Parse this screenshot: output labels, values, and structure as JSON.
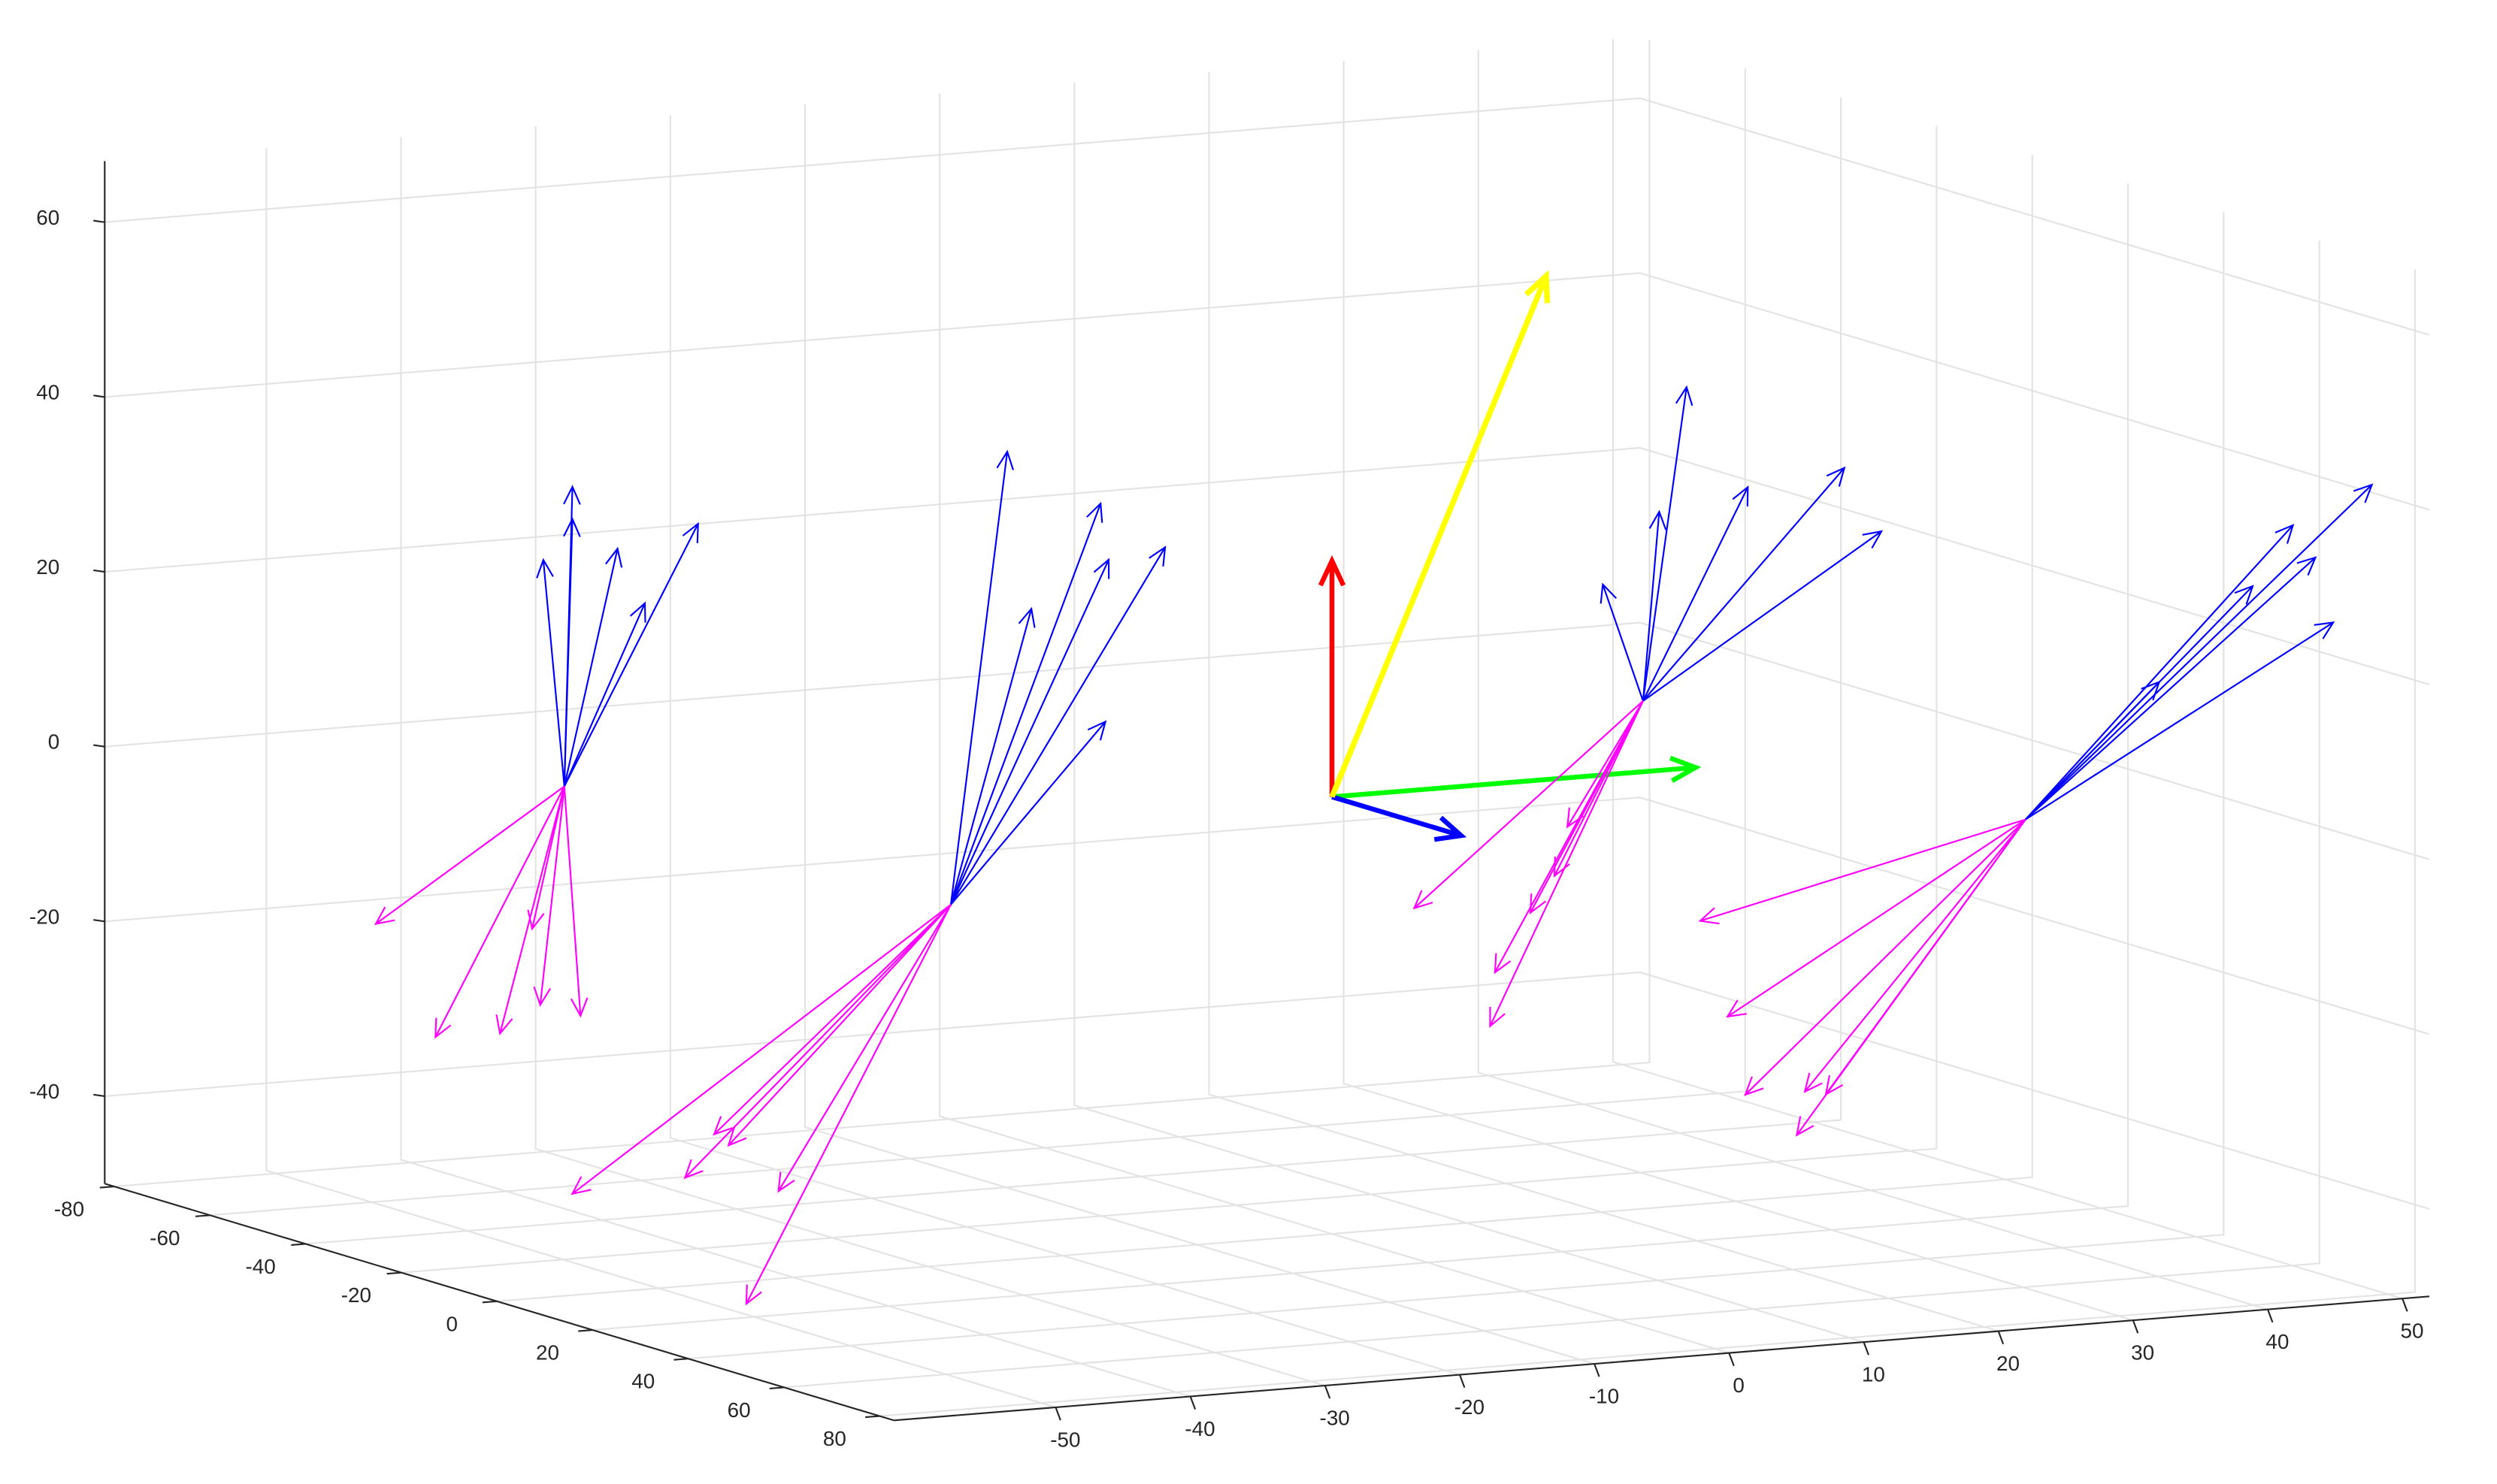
{
  "chart_data": {
    "type": "quiver3",
    "xlim": [
      -82,
      83
    ],
    "ylim": [
      -62,
      52
    ],
    "zlim": [
      -50,
      67
    ],
    "xticks": [
      -80,
      -60,
      -40,
      -20,
      0,
      20,
      40,
      60,
      80
    ],
    "yticks": [
      -50,
      -40,
      -30,
      -20,
      -10,
      0,
      10,
      20,
      30,
      40,
      50
    ],
    "zticks": [
      -40,
      -20,
      0,
      20,
      40,
      60
    ],
    "grid": true,
    "series": [
      {
        "color": "#ff0000",
        "line_width": 3,
        "origin": [
          0,
          0,
          0
        ],
        "vectors": [
          [
            0,
            0,
            27
          ]
        ]
      },
      {
        "color": "#00ff00",
        "line_width": 3,
        "origin": [
          0,
          0,
          0
        ],
        "vectors": [
          [
            0,
            27,
            0
          ]
        ]
      },
      {
        "color": "#0000ff",
        "line_width": 3,
        "origin": [
          0,
          0,
          0
        ],
        "vectors": [
          [
            27,
            0,
            0
          ]
        ]
      },
      {
        "color": "#ffff00",
        "line_width": 3.5,
        "origin": [
          0,
          0,
          0
        ],
        "vectors": [
          [
            0,
            15.9,
            57.6
          ]
        ]
      },
      {
        "color": "#0000ff",
        "line_width": 1,
        "origin": [
          0,
          -57.0,
          8.3
        ],
        "vectors": [
          [
            0,
            0.6,
            34.2
          ],
          [
            0,
            0.6,
            30.5
          ],
          [
            0,
            -1.56,
            26.1
          ],
          [
            0,
            3.95,
            26.7
          ],
          [
            0,
            5.98,
            20.2
          ],
          [
            0,
            9.93,
            28.8
          ]
        ]
      },
      {
        "color": "#ff00ff",
        "line_width": 1,
        "origin": [
          0,
          -57.0,
          8.3
        ],
        "vectors": [
          [
            0,
            -14.0,
            -14.0
          ],
          [
            0,
            -9.57,
            -27.5
          ],
          [
            0,
            -4.78,
            -27.7
          ],
          [
            0,
            -1.79,
            -24.8
          ],
          [
            0,
            1.2,
            -26.4
          ],
          [
            0,
            -2.39,
            -16.0
          ]
        ]
      },
      {
        "color": "#0000ff",
        "line_width": 1,
        "origin": [
          0,
          -28.3,
          -8.8
        ],
        "vectors": [
          [
            0,
            4.19,
            51.3
          ],
          [
            0,
            11.12,
            44.5
          ],
          [
            0,
            5.98,
            33.1
          ],
          [
            0,
            11.72,
            38.0
          ],
          [
            0,
            15.91,
            38.9
          ],
          [
            0,
            11.48,
            19.5
          ]
        ]
      },
      {
        "color": "#ff00ff",
        "line_width": 1,
        "origin": [
          0,
          -28.3,
          -8.8
        ],
        "vectors": [
          [
            0,
            -28.11,
            -29.6
          ],
          [
            0,
            -17.58,
            -24.1
          ],
          [
            0,
            -19.74,
            -28.8
          ],
          [
            0,
            -16.51,
            -25.5
          ],
          [
            0,
            -12.8,
            -31.2
          ],
          [
            0,
            -15.19,
            -43.8
          ]
        ]
      },
      {
        "color": "#0000ff",
        "line_width": 1,
        "origin": [
          0,
          23.1,
          8.1
        ],
        "vectors": [
          [
            0,
            3.23,
            35.5
          ],
          [
            0,
            1.2,
            21.5
          ],
          [
            0,
            -2.99,
            13.7
          ],
          [
            0,
            7.78,
            23.5
          ],
          [
            0,
            14.95,
            24.8
          ],
          [
            0,
            17.7,
            17.2
          ]
        ]
      },
      {
        "color": "#ff00ff",
        "line_width": 1,
        "origin": [
          0,
          23.1,
          8.1
        ],
        "vectors": [
          [
            0,
            -16.99,
            -21.6
          ],
          [
            0,
            -11.0,
            -29.7
          ],
          [
            0,
            -11.36,
            -35.8
          ],
          [
            0,
            -8.37,
            -23.2
          ],
          [
            0,
            -6.58,
            -19.2
          ],
          [
            0,
            -5.62,
            -13.7
          ]
        ]
      },
      {
        "color": "#0000ff",
        "line_width": 1,
        "origin": [
          0,
          51.5,
          -9.0
        ],
        "vectors": [
          [
            0,
            25.72,
            35.1
          ],
          [
            0,
            19.86,
            31.2
          ],
          [
            0,
            21.53,
            27.3
          ],
          [
            0,
            16.87,
            24.6
          ],
          [
            0,
            22.85,
            19.7
          ],
          [
            0,
            9.93,
            14.5
          ]
        ]
      },
      {
        "color": "#ff00ff",
        "line_width": 1,
        "origin": [
          0,
          51.5,
          -9.0
        ],
        "vectors": [
          [
            0,
            -24.16,
            -8.6
          ],
          [
            0,
            -22.13,
            -19.8
          ],
          [
            0,
            -20.81,
            -28.9
          ],
          [
            0,
            -16.39,
            -29.1
          ],
          [
            0,
            -14.83,
            -29.6
          ],
          [
            0,
            -16.99,
            -34.0
          ]
        ]
      }
    ]
  }
}
